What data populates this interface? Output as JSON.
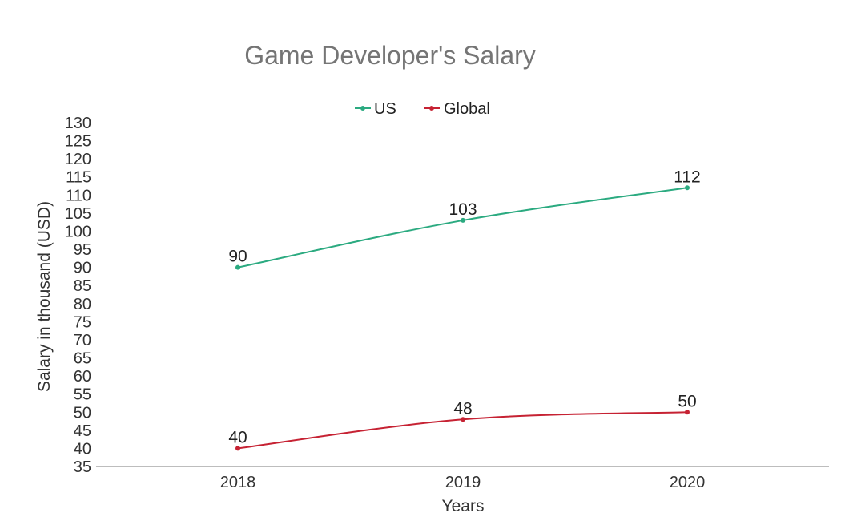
{
  "chart_data": {
    "type": "line",
    "title": "Game Developer's Salary",
    "xlabel": "Years",
    "ylabel": "Salary in thousand (USD)",
    "categories": [
      "2018",
      "2019",
      "2020"
    ],
    "ylim": [
      35,
      130
    ],
    "ytick_step": 5,
    "grid": false,
    "legend_position": "top-center",
    "series": [
      {
        "name": "US",
        "color": "#2BAA80",
        "values": [
          90,
          103,
          112
        ]
      },
      {
        "name": "Global",
        "color": "#C62233",
        "values": [
          40,
          48,
          50
        ]
      }
    ]
  }
}
